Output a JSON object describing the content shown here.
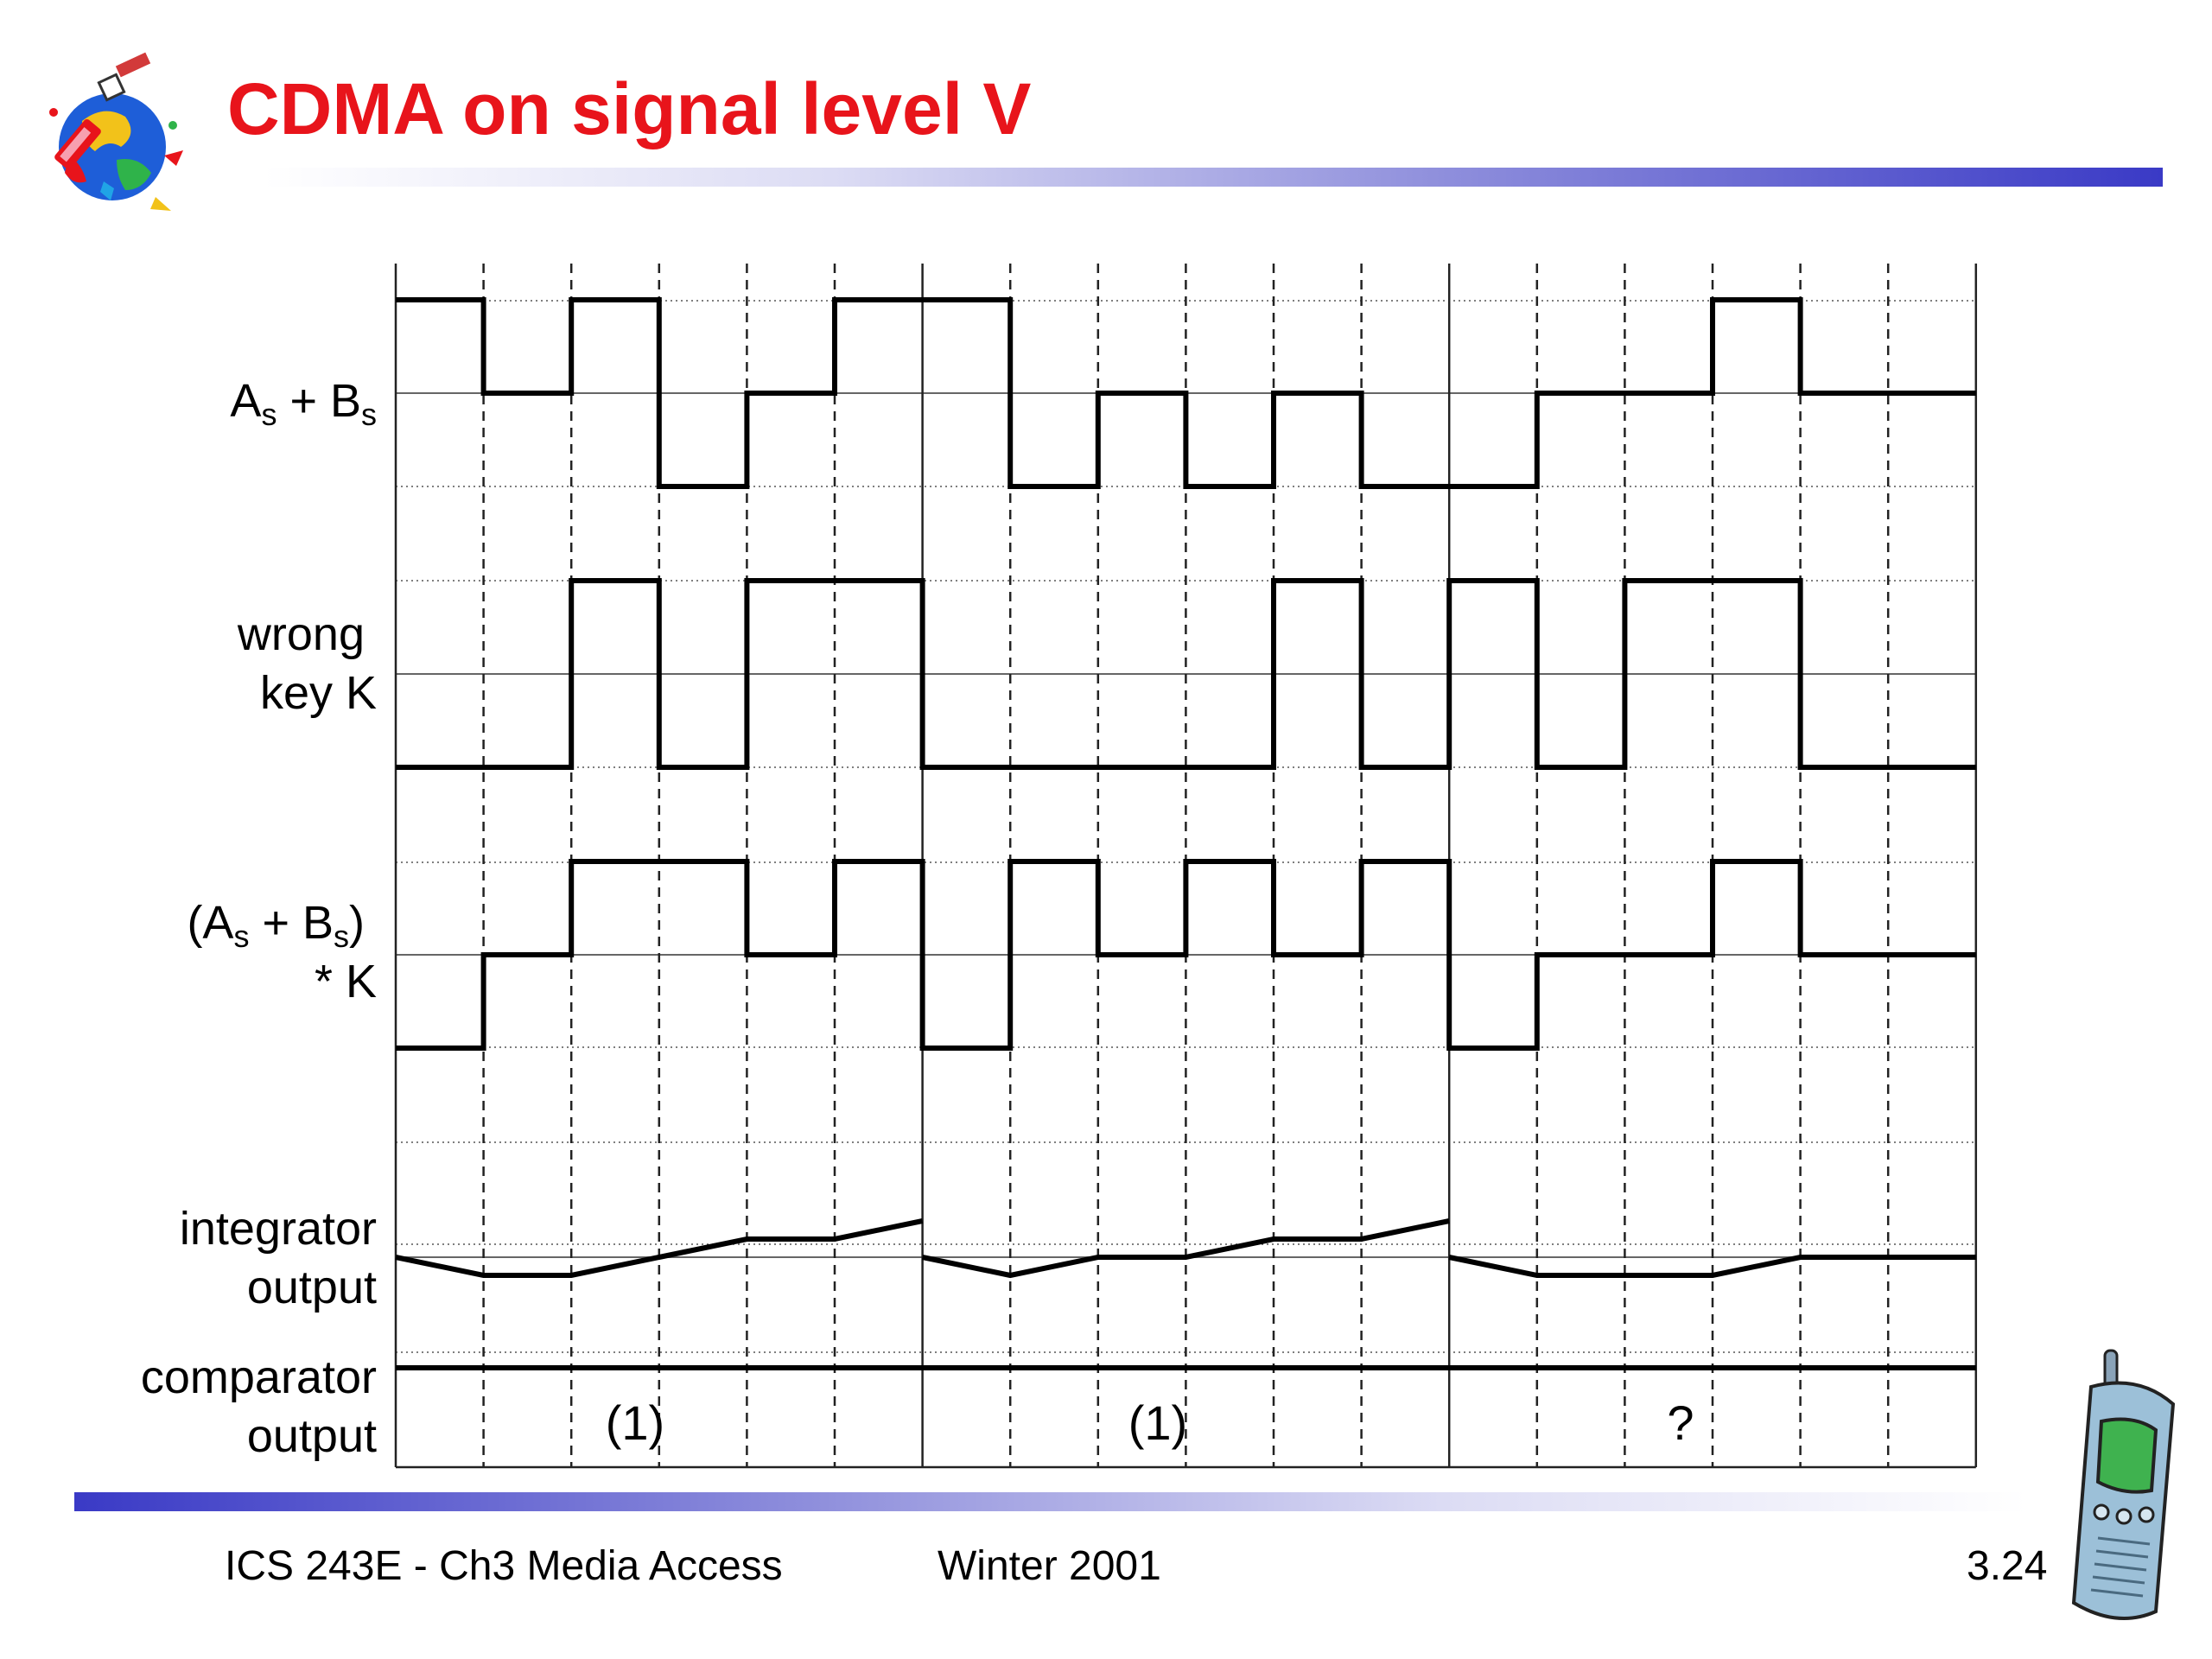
{
  "slide": {
    "title": "CDMA on signal level V",
    "footer_left": "ICS 243E -   Ch3 Media Access",
    "footer_center": "Winter 2001",
    "footer_right": "3.24",
    "logo_icon": "globe-satellite-clipart",
    "phone_icon": "mobile-phone-clipart"
  },
  "rows": [
    {
      "id": "sum",
      "label_main": "A",
      "label_sub1": "s",
      "label_mid": " + B",
      "label_sub2": "s"
    },
    {
      "id": "key",
      "line1": "wrong",
      "line2": "key K"
    },
    {
      "id": "product",
      "line1_a": "(A",
      "line1_sub1": "s",
      "line1_b": " + B",
      "line1_sub2": "s",
      "line1_c": ")",
      "line2": "* K"
    },
    {
      "id": "integrator",
      "line1": "integrator",
      "line2": "output"
    },
    {
      "id": "comparator",
      "line1": "comparator",
      "line2": "output"
    }
  ],
  "comparator_results": [
    "(1)",
    "(1)",
    "?"
  ],
  "waveforms": {
    "chips": 18,
    "sum_levels": [
      2,
      1,
      2,
      0,
      1,
      2,
      2,
      0,
      1,
      0,
      1,
      0,
      0,
      1,
      1,
      2,
      1,
      1
    ],
    "key_levels": [
      -1,
      -1,
      1,
      -1,
      1,
      1,
      -1,
      -1,
      -1,
      -1,
      1,
      -1,
      1,
      -1,
      1,
      1,
      -1,
      -1
    ],
    "product_levels": [
      -1,
      0,
      1,
      1,
      0,
      1,
      -1,
      1,
      0,
      1,
      0,
      1,
      -1,
      0,
      0,
      1,
      0,
      0
    ],
    "integrator_values": [
      [
        0,
        -1,
        -1,
        0,
        1,
        1,
        2
      ],
      [
        0,
        -1,
        0,
        0,
        1,
        1,
        2
      ],
      [
        0,
        -1,
        -1,
        -1,
        0,
        0,
        0
      ]
    ],
    "comparator_level": "high"
  }
}
